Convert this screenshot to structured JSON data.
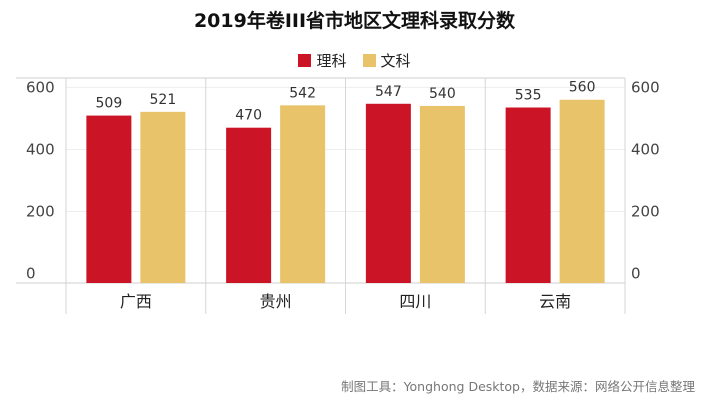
{
  "title": "2019年卷III省市地区文理科录取分数",
  "footer": "制图工具：Yonghong Desktop，数据来源：网络公开信息整理",
  "colors": {
    "like": "#cc1427",
    "wenke": "#e8c36a"
  },
  "chart_data": {
    "type": "bar",
    "title": "2019年卷III省市地区文理科录取分数",
    "categories": [
      "广西",
      "贵州",
      "四川",
      "云南"
    ],
    "series": [
      {
        "name": "理科",
        "values": [
          509,
          470,
          547,
          535
        ]
      },
      {
        "name": "文科",
        "values": [
          521,
          542,
          540,
          560
        ]
      }
    ],
    "yticks": [
      0,
      200,
      400,
      600
    ],
    "ylim": [
      -30,
      630
    ],
    "legend": "top-center",
    "grid": true
  }
}
